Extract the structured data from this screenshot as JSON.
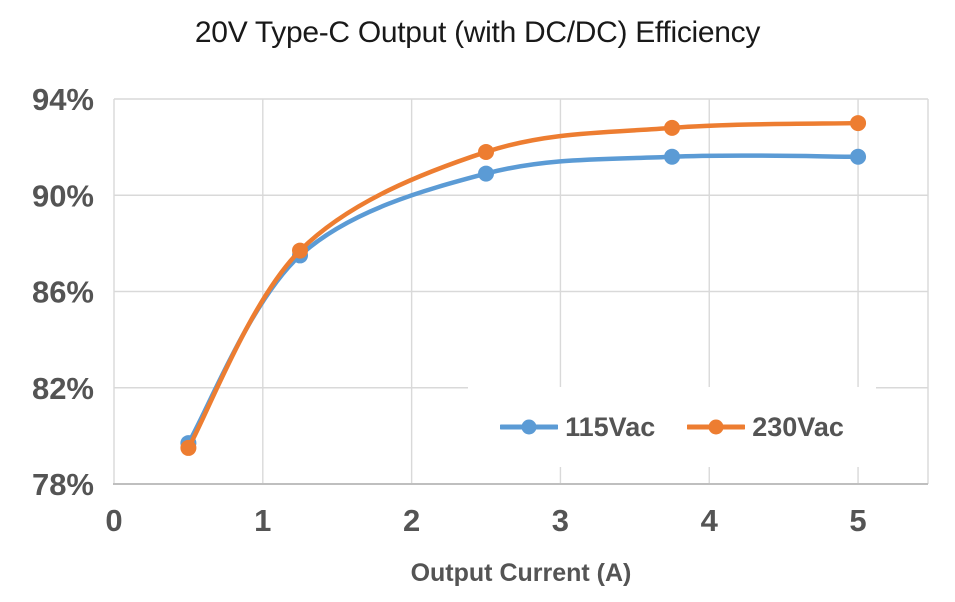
{
  "chart_data": {
    "type": "line",
    "title": "20V Type-C Output (with DC/DC) Efficiency",
    "xlabel": "Output Current (A)",
    "ylabel": "",
    "x": [
      0.5,
      1.25,
      2.5,
      3.75,
      5
    ],
    "series": [
      {
        "name": "115Vac",
        "color": "#5B9BD5",
        "values": [
          79.7,
          87.5,
          90.9,
          91.6,
          91.6
        ]
      },
      {
        "name": "230Vac",
        "color": "#ED7D31",
        "values": [
          79.5,
          87.7,
          91.8,
          92.8,
          93.0
        ]
      }
    ],
    "xlim": [
      0,
      5.47
    ],
    "ylim": [
      78,
      94
    ],
    "x_tick_values": [
      0,
      1,
      2,
      3,
      4,
      5
    ],
    "x_tick_labels": [
      "0",
      "1",
      "2",
      "3",
      "4",
      "5"
    ],
    "y_tick_values": [
      94,
      90,
      86,
      82,
      78
    ],
    "y_tick_labels": [
      "94%",
      "90%",
      "86%",
      "82%",
      "78%"
    ],
    "grid": true,
    "smooth": true,
    "marker": "circle",
    "legend_position": "inside-bottom-right"
  },
  "style": {
    "background": "#FFFFFF",
    "grid_color": "#D9D9D9",
    "axis_color": "#BFBFBF",
    "tick_label_color": "#545454",
    "title_color": "#191919",
    "series_blue": "#5B9BD5",
    "series_orange": "#ED7D31"
  }
}
